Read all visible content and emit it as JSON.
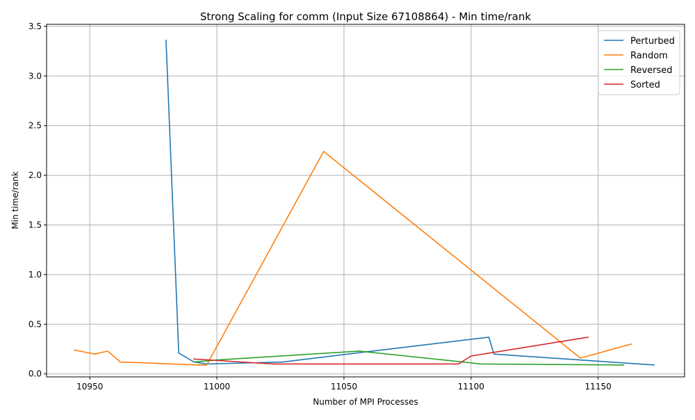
{
  "chart_data": {
    "type": "line",
    "title": "Strong Scaling for comm (Input Size 67108864) - Min time/rank",
    "xlabel": "Number of MPI Processes",
    "ylabel": "Min time/rank",
    "xlim": [
      10933,
      11184
    ],
    "ylim": [
      -0.03,
      3.52
    ],
    "xticks": [
      10950,
      11000,
      11050,
      11100,
      11150
    ],
    "xtick_labels": [
      "10950",
      "11000",
      "11050",
      "11100",
      "11150"
    ],
    "yticks": [
      0.0,
      0.5,
      1.0,
      1.5,
      2.0,
      2.5,
      3.0,
      3.5
    ],
    "ytick_labels": [
      "0.0",
      "0.5",
      "1.0",
      "1.5",
      "2.0",
      "2.5",
      "3.0",
      "3.5"
    ],
    "grid": true,
    "legend_position": "top-right",
    "series": [
      {
        "name": "Perturbed",
        "color": "#1f77b4",
        "x": [
          10980,
          10985,
          10991,
          10996,
          11026,
          11058,
          11107,
          11109,
          11172
        ],
        "y": [
          3.36,
          0.21,
          0.12,
          0.1,
          0.12,
          0.22,
          0.37,
          0.2,
          0.09
        ]
      },
      {
        "name": "Random",
        "color": "#ff7f0e",
        "x": [
          10944,
          10952,
          10957,
          10962,
          10993,
          10996,
          11042,
          11143,
          11163
        ],
        "y": [
          0.24,
          0.2,
          0.23,
          0.12,
          0.09,
          0.09,
          2.24,
          0.16,
          0.3
        ]
      },
      {
        "name": "Reversed",
        "color": "#2ca02c",
        "x": [
          10991,
          11000,
          11056,
          11104,
          11160
        ],
        "y": [
          0.12,
          0.14,
          0.23,
          0.1,
          0.09
        ]
      },
      {
        "name": "Sorted",
        "color": "#d62728",
        "x": [
          10991,
          11022,
          11095,
          11100,
          11146
        ],
        "y": [
          0.15,
          0.1,
          0.1,
          0.18,
          0.37
        ]
      }
    ]
  }
}
